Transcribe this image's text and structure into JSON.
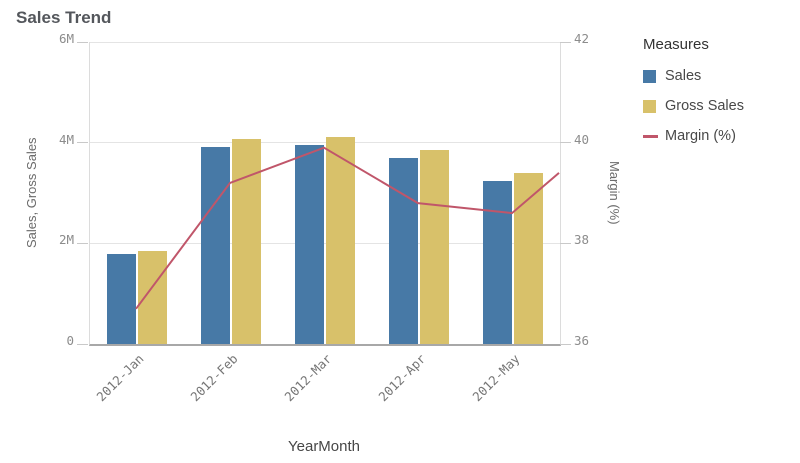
{
  "title": "Sales Trend",
  "legend": {
    "title": "Measures",
    "items": [
      {
        "label": "Sales",
        "swatch": "square"
      },
      {
        "label": "Gross Sales",
        "swatch": "square"
      },
      {
        "label": "Margin (%)",
        "swatch": "line"
      }
    ]
  },
  "chart_data": {
    "type": "combo",
    "categories": [
      "2012-Jan",
      "2012-Feb",
      "2012-Mar",
      "2012-Apr",
      "2012-May"
    ],
    "series": [
      {
        "name": "Sales",
        "type": "bar",
        "axis": "left",
        "color": "#4779a6",
        "values": [
          1790000,
          3910000,
          3950000,
          3690000,
          3230000
        ]
      },
      {
        "name": "Gross Sales",
        "type": "bar",
        "axis": "left",
        "color": "#d8c16a",
        "values": [
          1850000,
          4070000,
          4110000,
          3850000,
          3390000
        ]
      },
      {
        "name": "Margin (%)",
        "type": "line",
        "axis": "right",
        "color": "#c0566a",
        "values": [
          36.7,
          39.2,
          39.9,
          38.8,
          38.6
        ],
        "clipped_edge_value": 39.4
      }
    ],
    "left_axis": {
      "title": "Sales, Gross Sales",
      "range": [
        0,
        6000000
      ],
      "tick_values": [
        0,
        2000000,
        4000000,
        6000000
      ],
      "tick_labels": [
        "0",
        "2M",
        "4M",
        "6M"
      ]
    },
    "right_axis": {
      "title": "Margin (%)",
      "range": [
        36,
        42
      ],
      "tick_values": [
        36,
        38,
        40,
        42
      ],
      "tick_labels": [
        "36",
        "38",
        "40",
        "42"
      ]
    },
    "x_axis": {
      "title": "YearMonth"
    },
    "grid": true,
    "legend_position": "right"
  }
}
